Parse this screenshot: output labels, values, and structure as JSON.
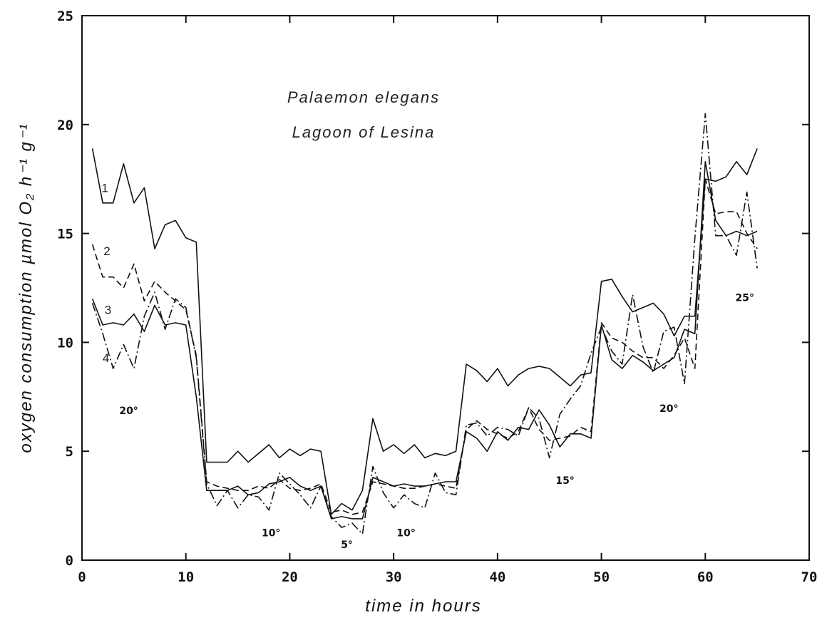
{
  "chart_data": {
    "type": "line",
    "title": "Palaemon elegans",
    "subtitle": "Lagoon of Lesina",
    "xlabel": "time in hours",
    "ylabel": "oxygen consumption µmol O₂ h⁻¹ g⁻¹",
    "xlim": [
      0,
      70
    ],
    "ylim": [
      0,
      25
    ],
    "xticks": [
      0,
      10,
      20,
      30,
      40,
      50,
      60,
      70
    ],
    "yticks": [
      0,
      5,
      10,
      15,
      20,
      25
    ],
    "xtick_labels": [
      "0",
      "10",
      "20",
      "30",
      "40",
      "50",
      "60",
      "70"
    ],
    "ytick_labels": [
      "0",
      "5",
      "10",
      "15",
      "20",
      "25"
    ],
    "grid": false,
    "x": [
      1,
      2,
      3,
      4,
      5,
      6,
      7,
      8,
      9,
      10,
      11,
      12,
      13,
      14,
      15,
      16,
      17,
      18,
      19,
      20,
      21,
      22,
      23,
      24,
      25,
      26,
      27,
      28,
      29,
      30,
      31,
      32,
      33,
      34,
      35,
      36,
      37,
      38,
      39,
      40,
      41,
      42,
      43,
      44,
      45,
      46,
      47,
      48,
      49,
      50,
      51,
      52,
      53,
      54,
      55,
      56,
      57,
      58,
      59,
      60,
      61,
      62,
      63,
      64,
      65
    ],
    "series": [
      {
        "name": "1",
        "dash": "solid",
        "values": [
          18.9,
          16.4,
          16.4,
          18.2,
          16.4,
          17.1,
          14.3,
          15.4,
          15.6,
          14.8,
          14.6,
          4.5,
          4.5,
          4.5,
          5.0,
          4.5,
          4.9,
          5.3,
          4.7,
          5.1,
          4.8,
          5.1,
          5.0,
          2.1,
          2.6,
          2.3,
          3.2,
          6.5,
          5.0,
          5.3,
          4.9,
          5.3,
          4.7,
          4.9,
          4.8,
          5.0,
          9.0,
          8.7,
          8.2,
          8.8,
          8.0,
          8.5,
          8.8,
          8.9,
          8.8,
          8.4,
          8.0,
          8.5,
          8.6,
          12.8,
          12.9,
          12.1,
          11.4,
          11.6,
          11.8,
          11.3,
          10.3,
          11.2,
          11.2,
          17.5,
          17.4,
          17.6,
          18.3,
          17.7,
          18.9
        ]
      },
      {
        "name": "2",
        "dash": "dashed",
        "values": [
          14.5,
          13.0,
          13.0,
          12.5,
          13.6,
          11.9,
          12.8,
          12.3,
          11.9,
          11.5,
          9.4,
          3.6,
          3.4,
          3.3,
          3.2,
          3.2,
          3.4,
          3.3,
          3.7,
          3.3,
          3.2,
          3.3,
          3.5,
          2.2,
          2.3,
          2.1,
          2.2,
          3.6,
          3.5,
          3.4,
          3.3,
          3.3,
          3.4,
          3.5,
          3.4,
          3.3,
          6.0,
          6.4,
          6.0,
          5.8,
          5.6,
          5.9,
          7.0,
          6.0,
          5.5,
          5.6,
          5.7,
          6.1,
          5.9,
          10.9,
          10.2,
          10.0,
          9.6,
          9.3,
          9.3,
          8.8,
          9.4,
          10.2,
          8.8,
          17.5,
          15.9,
          16.0,
          16.0,
          15.0,
          14.3
        ]
      },
      {
        "name": "3",
        "dash": "solid",
        "values": [
          12.0,
          10.8,
          10.9,
          10.8,
          11.3,
          10.5,
          11.7,
          10.8,
          10.9,
          10.8,
          7.5,
          3.2,
          3.2,
          3.2,
          3.4,
          3.0,
          3.1,
          3.5,
          3.6,
          3.8,
          3.4,
          3.2,
          3.4,
          1.9,
          2.0,
          1.9,
          1.9,
          3.8,
          3.6,
          3.4,
          3.5,
          3.4,
          3.4,
          3.5,
          3.6,
          3.6,
          5.9,
          5.6,
          5.0,
          5.9,
          5.5,
          6.1,
          6.0,
          6.9,
          6.2,
          5.2,
          5.8,
          5.8,
          5.6,
          10.8,
          9.2,
          8.8,
          9.4,
          9.1,
          8.7,
          9.0,
          9.3,
          10.6,
          10.4,
          18.3,
          15.6,
          14.9,
          15.1,
          14.9,
          15.1
        ]
      },
      {
        "name": "4",
        "dash": "dashdot",
        "values": [
          11.8,
          10.4,
          8.8,
          9.9,
          8.8,
          11.2,
          12.3,
          10.6,
          12.0,
          11.6,
          9.3,
          3.5,
          2.5,
          3.2,
          2.4,
          3.0,
          2.9,
          2.3,
          4.0,
          3.5,
          3.0,
          2.4,
          3.4,
          2.0,
          1.5,
          1.7,
          1.2,
          4.3,
          3.1,
          2.4,
          3.0,
          2.6,
          2.4,
          4.0,
          3.1,
          3.0,
          6.2,
          6.3,
          5.7,
          6.1,
          6.0,
          5.7,
          7.0,
          6.5,
          4.7,
          6.7,
          7.4,
          8.0,
          9.5,
          10.7,
          9.6,
          9.0,
          12.2,
          9.8,
          8.6,
          10.5,
          10.7,
          8.1,
          14.8,
          20.5,
          14.9,
          14.9,
          14.0,
          16.9,
          13.4
        ]
      }
    ],
    "annotations": [
      {
        "text": "20°",
        "x": 4.5,
        "y": 6.7
      },
      {
        "text": "10°",
        "x": 18.2,
        "y": 1.1
      },
      {
        "text": "5°",
        "x": 25.5,
        "y": 0.55
      },
      {
        "text": "10°",
        "x": 31.2,
        "y": 1.1
      },
      {
        "text": "15°",
        "x": 46.5,
        "y": 3.5
      },
      {
        "text": "20°",
        "x": 56.5,
        "y": 6.8
      },
      {
        "text": "25°",
        "x": 63.8,
        "y": 11.9
      }
    ],
    "series_labels": [
      {
        "text": "1",
        "x": 2.2,
        "y": 16.9
      },
      {
        "text": "2",
        "x": 2.4,
        "y": 14.0
      },
      {
        "text": "3",
        "x": 2.5,
        "y": 11.3
      },
      {
        "text": "4",
        "x": 2.3,
        "y": 9.1
      }
    ]
  }
}
